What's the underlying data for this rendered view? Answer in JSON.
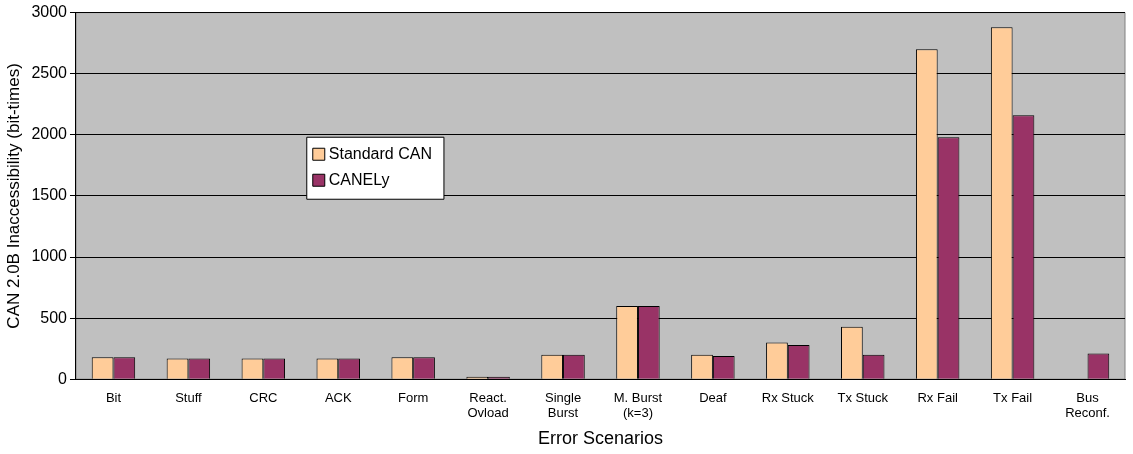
{
  "chart_data": {
    "type": "bar",
    "categories": [
      "Bit",
      "Stuff",
      "CRC",
      "ACK",
      "Form",
      "React.\nOvload",
      "Single\nBurst",
      "M. Burst\n(k=3)",
      "Deaf",
      "Rx Stuck",
      "Tx Stuck",
      "Rx Fail",
      "Tx Fail",
      "Bus\nReconf."
    ],
    "series": [
      {
        "name": "Standard CAN",
        "color": "#ffcc99",
        "values": [
          180,
          170,
          170,
          170,
          180,
          20,
          200,
          600,
          200,
          300,
          430,
          2700,
          2880,
          null
        ]
      },
      {
        "name": "CANELy",
        "color": "#993366",
        "values": [
          180,
          170,
          170,
          170,
          180,
          20,
          200,
          600,
          190,
          280,
          200,
          1980,
          2160,
          210
        ]
      }
    ],
    "xlabel": "Error Scenarios",
    "ylabel": "CAN 2.0B Inaccessibility (bit-times)",
    "ylim": [
      0,
      3000
    ],
    "yticks": [
      0,
      500,
      1000,
      1500,
      2000,
      2500,
      3000
    ],
    "grid": "y",
    "legend": "top left"
  }
}
